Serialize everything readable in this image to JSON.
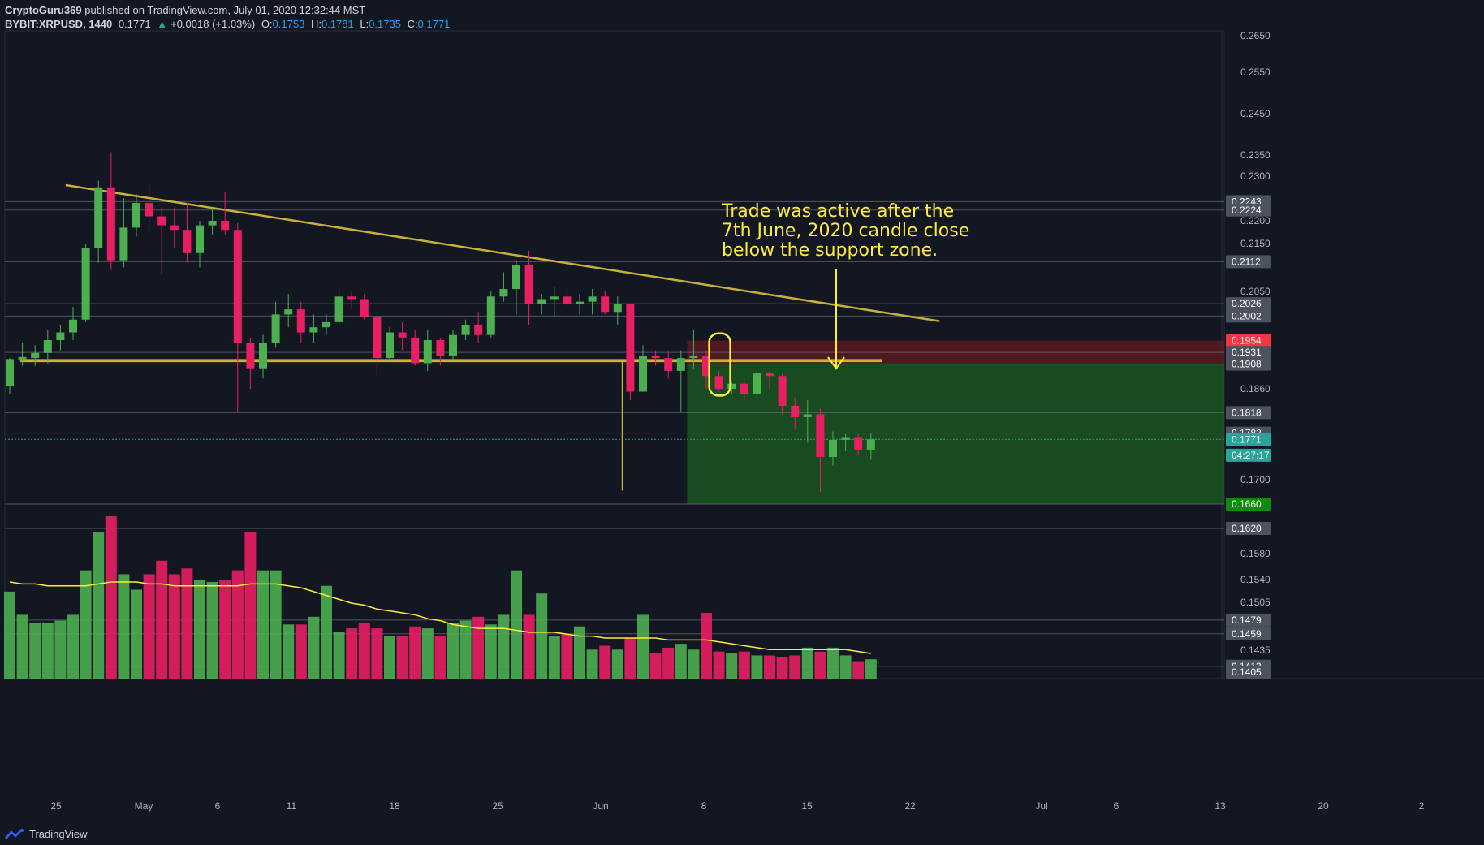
{
  "header": {
    "author": "CryptoGuru369",
    "published": "published on TradingView.com, July 01, 2020 12:32:44 MST",
    "symbol": "BYBIT:XRPUSD, 1440",
    "last": "0.1771",
    "change_arrow": "▲",
    "change": "+0.0018 (+1.03%)",
    "o_label": "O:",
    "o_val": "0.1753",
    "h_label": "H:",
    "h_val": "0.1781",
    "l_label": "L:",
    "l_val": "0.1735",
    "c_label": "C:",
    "c_val": "0.1771"
  },
  "footer": {
    "brand": "TradingView",
    "logo_icon": "tradingview-logo-icon"
  },
  "annotation": {
    "lines": [
      "Trade was active after the",
      "7th June, 2020 candle close",
      "below the support zone."
    ],
    "color": "#ffeb3b"
  },
  "chart_data": {
    "type": "candlestick",
    "colors": {
      "up": "#4caf50",
      "down": "#e91e63",
      "trendline": "#c9b03a",
      "target_zone": "#1b5e20",
      "stop_zone": "#5a1a22",
      "volume_ma": "#ffeb3b"
    },
    "y_ticks": [
      "0.2650",
      "0.2550",
      "0.2450",
      "0.2350",
      "0.2300",
      "0.2200",
      "0.2150",
      "0.2050",
      "0.1860",
      "0.1700",
      "0.1580",
      "0.1540",
      "0.1505",
      "0.1435"
    ],
    "x_ticks": [
      "25",
      "May",
      "6",
      "11",
      "18",
      "25",
      "Jun",
      "8",
      "15",
      "22",
      "Jul",
      "6",
      "13",
      "20",
      "2"
    ],
    "price_labels": [
      {
        "text": "0.2243",
        "value": 0.2243,
        "bg": "#4c525e"
      },
      {
        "text": "0.2224",
        "value": 0.2224,
        "bg": "#4c525e"
      },
      {
        "text": "0.2112",
        "value": 0.2112,
        "bg": "#4c525e"
      },
      {
        "text": "0.2026",
        "value": 0.2026,
        "bg": "#4c525e"
      },
      {
        "text": "0.2002",
        "value": 0.2002,
        "bg": "#4c525e"
      },
      {
        "text": "0.1954",
        "value": 0.1954,
        "bg": "#f23645"
      },
      {
        "text": "0.1931",
        "value": 0.1931,
        "bg": "#4c525e"
      },
      {
        "text": "0.1908",
        "value": 0.1908,
        "bg": "#4c525e"
      },
      {
        "text": "0.1818",
        "value": 0.1818,
        "bg": "#4c525e"
      },
      {
        "text": "0.1782",
        "value": 0.1782,
        "bg": "#4c525e"
      },
      {
        "text": "0.1771",
        "value": 0.1771,
        "bg": "#26a69a"
      },
      {
        "text": "04:27:17",
        "value": 0.1743,
        "bg": "#26a69a"
      },
      {
        "text": "0.1660",
        "value": 0.166,
        "bg": "#0f8a0f"
      },
      {
        "text": "0.1620",
        "value": 0.162,
        "bg": "#4c525e"
      },
      {
        "text": "0.1479",
        "value": 0.1479,
        "bg": "#4c525e"
      },
      {
        "text": "0.1459",
        "value": 0.1459,
        "bg": "#4c525e"
      },
      {
        "text": "0.1413",
        "value": 0.1413,
        "bg": "#4c525e"
      },
      {
        "text": "0.1405",
        "value": 0.1405,
        "bg": "#4c525e"
      }
    ],
    "horizontal_levels": [
      0.2243,
      0.2224,
      0.2112,
      0.2026,
      0.2002,
      0.1931,
      0.1908,
      0.1818,
      0.1782,
      0.166,
      0.162,
      0.1479,
      0.1459,
      0.1413
    ],
    "support_zone": {
      "top": 0.1918,
      "bottom": 0.1912
    },
    "stop_zone": {
      "start_day": 54,
      "top": 0.1954,
      "bottom": 0.1908
    },
    "target_zone": {
      "start_day": 54,
      "top": 0.1908,
      "bottom": 0.166
    },
    "trendline": {
      "from": [
        3,
        0.228
      ],
      "to": [
        72,
        0.1992
      ]
    },
    "projection_line": {
      "day": 48,
      "top": 0.1918,
      "bottom": 0.1682
    },
    "current_price": 0.1771,
    "candles": [
      {
        "o": 0.1865,
        "h": 0.192,
        "l": 0.185,
        "c": 0.1918
      },
      {
        "o": 0.1915,
        "h": 0.195,
        "l": 0.1905,
        "c": 0.1922
      },
      {
        "o": 0.192,
        "h": 0.1945,
        "l": 0.1905,
        "c": 0.193
      },
      {
        "o": 0.193,
        "h": 0.1975,
        "l": 0.191,
        "c": 0.1955
      },
      {
        "o": 0.1955,
        "h": 0.1985,
        "l": 0.1935,
        "c": 0.197
      },
      {
        "o": 0.197,
        "h": 0.202,
        "l": 0.1955,
        "c": 0.1995
      },
      {
        "o": 0.1995,
        "h": 0.215,
        "l": 0.199,
        "c": 0.214
      },
      {
        "o": 0.214,
        "h": 0.229,
        "l": 0.211,
        "c": 0.2275
      },
      {
        "o": 0.2275,
        "h": 0.236,
        "l": 0.2095,
        "c": 0.2115
      },
      {
        "o": 0.2115,
        "h": 0.225,
        "l": 0.21,
        "c": 0.2185
      },
      {
        "o": 0.2185,
        "h": 0.226,
        "l": 0.2165,
        "c": 0.224
      },
      {
        "o": 0.224,
        "h": 0.2285,
        "l": 0.218,
        "c": 0.221
      },
      {
        "o": 0.221,
        "h": 0.223,
        "l": 0.2085,
        "c": 0.219
      },
      {
        "o": 0.219,
        "h": 0.223,
        "l": 0.214,
        "c": 0.218
      },
      {
        "o": 0.218,
        "h": 0.224,
        "l": 0.211,
        "c": 0.213
      },
      {
        "o": 0.213,
        "h": 0.22,
        "l": 0.21,
        "c": 0.219
      },
      {
        "o": 0.219,
        "h": 0.223,
        "l": 0.217,
        "c": 0.22
      },
      {
        "o": 0.22,
        "h": 0.2265,
        "l": 0.217,
        "c": 0.218
      },
      {
        "o": 0.218,
        "h": 0.2195,
        "l": 0.182,
        "c": 0.195
      },
      {
        "o": 0.195,
        "h": 0.196,
        "l": 0.186,
        "c": 0.19
      },
      {
        "o": 0.19,
        "h": 0.1965,
        "l": 0.188,
        "c": 0.195
      },
      {
        "o": 0.195,
        "h": 0.203,
        "l": 0.194,
        "c": 0.2005
      },
      {
        "o": 0.2005,
        "h": 0.2045,
        "l": 0.198,
        "c": 0.2015
      },
      {
        "o": 0.2015,
        "h": 0.203,
        "l": 0.195,
        "c": 0.197
      },
      {
        "o": 0.197,
        "h": 0.2005,
        "l": 0.195,
        "c": 0.198
      },
      {
        "o": 0.198,
        "h": 0.2005,
        "l": 0.1965,
        "c": 0.199
      },
      {
        "o": 0.199,
        "h": 0.206,
        "l": 0.198,
        "c": 0.204
      },
      {
        "o": 0.204,
        "h": 0.205,
        "l": 0.2015,
        "c": 0.2035
      },
      {
        "o": 0.2035,
        "h": 0.2045,
        "l": 0.1995,
        "c": 0.2
      },
      {
        "o": 0.2,
        "h": 0.2005,
        "l": 0.1885,
        "c": 0.192
      },
      {
        "o": 0.192,
        "h": 0.198,
        "l": 0.1915,
        "c": 0.197
      },
      {
        "o": 0.197,
        "h": 0.199,
        "l": 0.1935,
        "c": 0.196
      },
      {
        "o": 0.196,
        "h": 0.1975,
        "l": 0.1905,
        "c": 0.191
      },
      {
        "o": 0.191,
        "h": 0.1975,
        "l": 0.1895,
        "c": 0.1955
      },
      {
        "o": 0.1955,
        "h": 0.196,
        "l": 0.1905,
        "c": 0.1925
      },
      {
        "o": 0.1925,
        "h": 0.1975,
        "l": 0.1915,
        "c": 0.1965
      },
      {
        "o": 0.1965,
        "h": 0.1995,
        "l": 0.1955,
        "c": 0.1985
      },
      {
        "o": 0.1985,
        "h": 0.201,
        "l": 0.195,
        "c": 0.1965
      },
      {
        "o": 0.1965,
        "h": 0.205,
        "l": 0.196,
        "c": 0.204
      },
      {
        "o": 0.204,
        "h": 0.209,
        "l": 0.203,
        "c": 0.2055
      },
      {
        "o": 0.2055,
        "h": 0.2115,
        "l": 0.2005,
        "c": 0.2105
      },
      {
        "o": 0.2105,
        "h": 0.2135,
        "l": 0.1985,
        "c": 0.2025
      },
      {
        "o": 0.2025,
        "h": 0.2045,
        "l": 0.2005,
        "c": 0.2035
      },
      {
        "o": 0.2035,
        "h": 0.206,
        "l": 0.2,
        "c": 0.204
      },
      {
        "o": 0.204,
        "h": 0.2055,
        "l": 0.202,
        "c": 0.2025
      },
      {
        "o": 0.2025,
        "h": 0.2045,
        "l": 0.2005,
        "c": 0.203
      },
      {
        "o": 0.203,
        "h": 0.2055,
        "l": 0.2005,
        "c": 0.204
      },
      {
        "o": 0.204,
        "h": 0.205,
        "l": 0.2005,
        "c": 0.201
      },
      {
        "o": 0.201,
        "h": 0.204,
        "l": 0.1985,
        "c": 0.2025
      },
      {
        "o": 0.2025,
        "h": 0.2025,
        "l": 0.184,
        "c": 0.1855
      },
      {
        "o": 0.1855,
        "h": 0.1945,
        "l": 0.1855,
        "c": 0.1925
      },
      {
        "o": 0.1925,
        "h": 0.1935,
        "l": 0.1905,
        "c": 0.192
      },
      {
        "o": 0.192,
        "h": 0.1935,
        "l": 0.188,
        "c": 0.1895
      },
      {
        "o": 0.1895,
        "h": 0.1935,
        "l": 0.182,
        "c": 0.192
      },
      {
        "o": 0.192,
        "h": 0.1975,
        "l": 0.19,
        "c": 0.1925
      },
      {
        "o": 0.1925,
        "h": 0.1935,
        "l": 0.186,
        "c": 0.1885
      },
      {
        "o": 0.1885,
        "h": 0.1895,
        "l": 0.1855,
        "c": 0.186
      },
      {
        "o": 0.186,
        "h": 0.1875,
        "l": 0.185,
        "c": 0.187
      },
      {
        "o": 0.187,
        "h": 0.188,
        "l": 0.184,
        "c": 0.185
      },
      {
        "o": 0.185,
        "h": 0.1895,
        "l": 0.1845,
        "c": 0.189
      },
      {
        "o": 0.189,
        "h": 0.1895,
        "l": 0.186,
        "c": 0.1885
      },
      {
        "o": 0.1885,
        "h": 0.189,
        "l": 0.1815,
        "c": 0.183
      },
      {
        "o": 0.183,
        "h": 0.1845,
        "l": 0.179,
        "c": 0.181
      },
      {
        "o": 0.181,
        "h": 0.184,
        "l": 0.1765,
        "c": 0.1815
      },
      {
        "o": 0.1815,
        "h": 0.1825,
        "l": 0.168,
        "c": 0.174
      },
      {
        "o": 0.174,
        "h": 0.1785,
        "l": 0.1725,
        "c": 0.177
      },
      {
        "o": 0.177,
        "h": 0.178,
        "l": 0.175,
        "c": 0.1775
      },
      {
        "o": 0.1775,
        "h": 0.178,
        "l": 0.1745,
        "c": 0.1753
      },
      {
        "o": 0.1753,
        "h": 0.1781,
        "l": 0.1735,
        "c": 0.1771
      }
    ],
    "volume": [
      45,
      33,
      29,
      29,
      30,
      33,
      56,
      76,
      84,
      54,
      46,
      54,
      61,
      54,
      57,
      51,
      50,
      51,
      56,
      76,
      56,
      56,
      28,
      28,
      32,
      48,
      24,
      26,
      29,
      26,
      22,
      22,
      27,
      26,
      22,
      29,
      30,
      32,
      28,
      33,
      56,
      33,
      44,
      22,
      23,
      27,
      15,
      17,
      15,
      21,
      33,
      13,
      16,
      18,
      15,
      34,
      14,
      13,
      14,
      12,
      12,
      11,
      12,
      16,
      14,
      16,
      12,
      9,
      10
    ],
    "volume_ma": [
      50,
      49,
      49,
      48,
      48,
      48,
      48,
      49,
      50,
      50,
      50,
      49,
      49,
      48,
      48,
      48,
      48,
      48,
      48,
      49,
      49,
      49,
      48,
      47,
      45,
      43,
      41,
      39,
      38,
      36,
      35,
      34,
      33,
      31,
      30,
      28,
      27,
      26,
      26,
      26,
      25,
      24,
      24,
      24,
      23,
      22,
      22,
      21,
      21,
      21,
      21,
      21,
      20,
      20,
      20,
      20,
      19,
      18,
      17,
      16,
      15,
      15,
      15,
      15,
      15,
      15,
      15,
      14,
      13
    ],
    "volume_ylim": [
      0,
      84
    ]
  }
}
